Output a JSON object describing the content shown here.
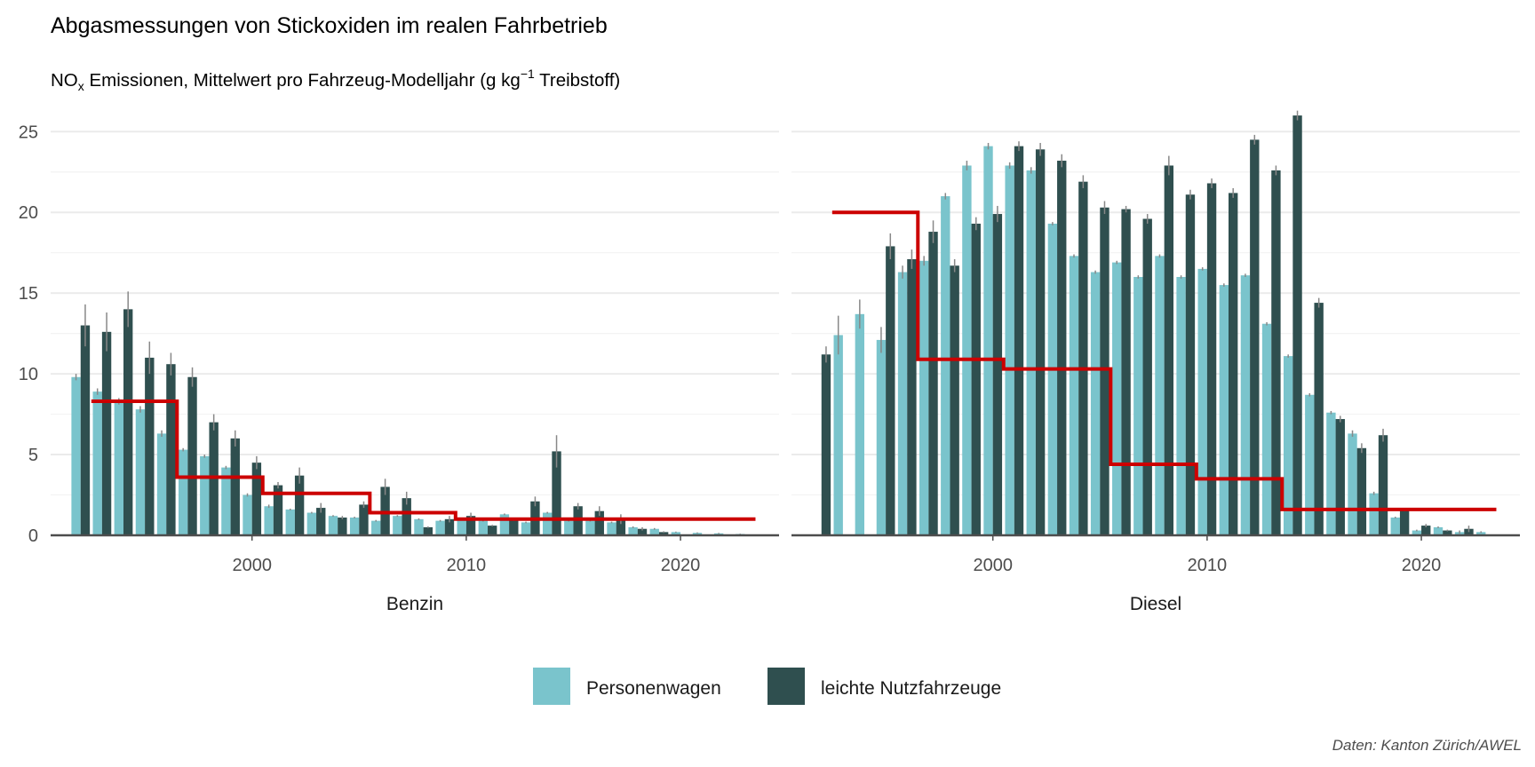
{
  "title": "Abgasmessungen von Stickoxiden im realen Fahrbetrieb",
  "subtitle": {
    "pre": "NO",
    "sub": "x",
    "mid": " Emissionen, Mittelwert pro Fahrzeug-Modelljahr (g kg",
    "sup": "−1",
    "post": " Treibstoff)"
  },
  "caption": "Daten: Kanton Zürich/AWEL",
  "colors": {
    "personenwagen": "#7ac4cc",
    "nutzfahrzeuge": "#2f4f4f",
    "limit": "#cc0000",
    "errorbar": "#888888",
    "grid": "#ebebeb",
    "axis": "#4d4d4d"
  },
  "chart_data": {
    "type": "bar",
    "y_ticks": [
      0,
      5,
      10,
      15,
      20,
      25
    ],
    "x_ticks": [
      2000,
      2010,
      2020
    ],
    "ylim": [
      0,
      26.5
    ],
    "xlim": [
      1990.6,
      2024.6
    ],
    "legend": {
      "position": "bottom",
      "items": [
        {
          "key": "personenwagen",
          "label": "Personenwagen"
        },
        {
          "key": "nutzfahrzeuge",
          "label": "leichte Nutzfahrzeuge"
        }
      ]
    },
    "panels": [
      {
        "name": "Benzin",
        "series": [
          {
            "key": "personenwagen",
            "name": "Personenwagen",
            "years": [
              1992,
              1993,
              1994,
              1995,
              1996,
              1997,
              1998,
              1999,
              2000,
              2001,
              2002,
              2003,
              2004,
              2005,
              2006,
              2007,
              2008,
              2009,
              2010,
              2011,
              2012,
              2013,
              2014,
              2015,
              2016,
              2017,
              2018,
              2019,
              2020,
              2021,
              2022,
              2023
            ],
            "values": [
              9.8,
              8.9,
              8.3,
              7.8,
              6.3,
              5.3,
              4.9,
              4.2,
              2.5,
              1.8,
              1.6,
              1.4,
              1.2,
              1.1,
              0.9,
              1.2,
              1.0,
              0.9,
              1.0,
              0.9,
              1.3,
              0.8,
              1.4,
              0.9,
              0.9,
              0.8,
              0.5,
              0.4,
              0.2,
              0.15,
              0.12,
              0.08
            ],
            "errors": [
              0.2,
              0.2,
              0.2,
              0.2,
              0.2,
              0.1,
              0.1,
              0.1,
              0.1,
              0.1,
              0.05,
              0.05,
              0.05,
              0.05,
              0.05,
              0.05,
              0.05,
              0.05,
              0.05,
              0.05,
              0.05,
              0.05,
              0.05,
              0.05,
              0.05,
              0.05,
              0.05,
              0.05,
              0.03,
              0.03,
              0.03,
              0.02
            ]
          },
          {
            "key": "nutzfahrzeuge",
            "name": "leichte Nutzfahrzeuge",
            "years": [
              1992,
              1993,
              1994,
              1995,
              1996,
              1997,
              1998,
              1999,
              2000,
              2001,
              2002,
              2003,
              2004,
              2005,
              2006,
              2007,
              2008,
              2009,
              2010,
              2011,
              2012,
              2013,
              2014,
              2015,
              2016,
              2017,
              2018,
              2019
            ],
            "values": [
              13.0,
              12.6,
              14.0,
              11.0,
              10.6,
              9.8,
              7.0,
              6.0,
              4.5,
              3.1,
              3.7,
              1.7,
              1.1,
              1.9,
              3.0,
              2.3,
              0.5,
              1.0,
              1.2,
              0.6,
              1.0,
              2.1,
              5.2,
              1.8,
              1.5,
              1.0,
              0.4,
              0.2
            ],
            "errors": [
              1.3,
              1.2,
              1.1,
              1.0,
              0.7,
              0.6,
              0.5,
              0.5,
              0.4,
              0.2,
              0.5,
              0.3,
              0.1,
              0.2,
              0.5,
              0.4,
              0.05,
              0.2,
              0.2,
              0.05,
              0.1,
              0.3,
              1.0,
              0.2,
              0.3,
              0.3,
              0.1,
              0.05
            ]
          }
        ],
        "limits": [
          {
            "from": 1992,
            "to": 1996,
            "value": 8.3
          },
          {
            "from": 1996,
            "to": 2000,
            "value": 3.6
          },
          {
            "from": 2000,
            "to": 2005,
            "value": 2.6
          },
          {
            "from": 2005,
            "to": 2009,
            "value": 1.4
          },
          {
            "from": 2009,
            "to": 2023,
            "value": 1.0
          }
        ]
      },
      {
        "name": "Diesel",
        "series": [
          {
            "key": "personenwagen",
            "name": "Personenwagen",
            "years": [
              1993,
              1994,
              1995,
              1996,
              1997,
              1998,
              1999,
              2000,
              2001,
              2002,
              2003,
              2004,
              2005,
              2006,
              2007,
              2008,
              2009,
              2010,
              2011,
              2012,
              2013,
              2014,
              2015,
              2016,
              2017,
              2018,
              2019,
              2020,
              2021,
              2022,
              2023
            ],
            "values": [
              12.4,
              13.7,
              12.1,
              16.3,
              17.0,
              21.0,
              22.9,
              24.1,
              22.9,
              22.6,
              19.3,
              17.3,
              16.3,
              16.9,
              16.0,
              17.3,
              16.0,
              16.5,
              15.5,
              16.1,
              13.1,
              11.1,
              8.7,
              7.6,
              6.3,
              2.6,
              1.1,
              0.3,
              0.5,
              0.2,
              0.2
            ],
            "errors": [
              1.2,
              0.9,
              0.8,
              0.4,
              0.3,
              0.2,
              0.3,
              0.2,
              0.2,
              0.2,
              0.1,
              0.1,
              0.1,
              0.1,
              0.1,
              0.1,
              0.1,
              0.1,
              0.1,
              0.1,
              0.1,
              0.1,
              0.1,
              0.1,
              0.2,
              0.1,
              0.05,
              0.05,
              0.05,
              0.1,
              0.05
            ]
          },
          {
            "key": "nutzfahrzeuge",
            "name": "leichte Nutzfahrzeuge",
            "years": [
              1992,
              1995,
              1996,
              1997,
              1998,
              1999,
              2000,
              2001,
              2002,
              2003,
              2004,
              2005,
              2006,
              2007,
              2008,
              2009,
              2010,
              2011,
              2012,
              2013,
              2014,
              2015,
              2016,
              2017,
              2018,
              2019,
              2020,
              2021,
              2022
            ],
            "values": [
              11.2,
              17.9,
              17.1,
              18.8,
              16.7,
              19.3,
              19.9,
              24.1,
              23.9,
              23.2,
              21.9,
              20.3,
              20.2,
              19.6,
              22.9,
              21.1,
              21.8,
              21.2,
              24.5,
              22.6,
              26.0,
              14.4,
              7.2,
              5.4,
              6.2,
              1.6,
              0.6,
              0.3,
              0.4
            ],
            "errors": [
              0.5,
              0.8,
              0.6,
              0.7,
              0.4,
              0.4,
              0.5,
              0.3,
              0.4,
              0.4,
              0.4,
              0.4,
              0.2,
              0.3,
              0.6,
              0.3,
              0.3,
              0.3,
              0.3,
              0.3,
              0.3,
              0.3,
              0.2,
              0.3,
              0.4,
              0.1,
              0.1,
              0.05,
              0.2
            ]
          }
        ],
        "limits": [
          {
            "from": 1992,
            "to": 1996,
            "value": 20.0
          },
          {
            "from": 1996,
            "to": 2000,
            "value": 10.9
          },
          {
            "from": 2000,
            "to": 2005,
            "value": 10.3
          },
          {
            "from": 2005,
            "to": 2009,
            "value": 4.4
          },
          {
            "from": 2009,
            "to": 2013,
            "value": 3.5
          },
          {
            "from": 2013,
            "to": 2023,
            "value": 1.6
          }
        ]
      }
    ]
  }
}
